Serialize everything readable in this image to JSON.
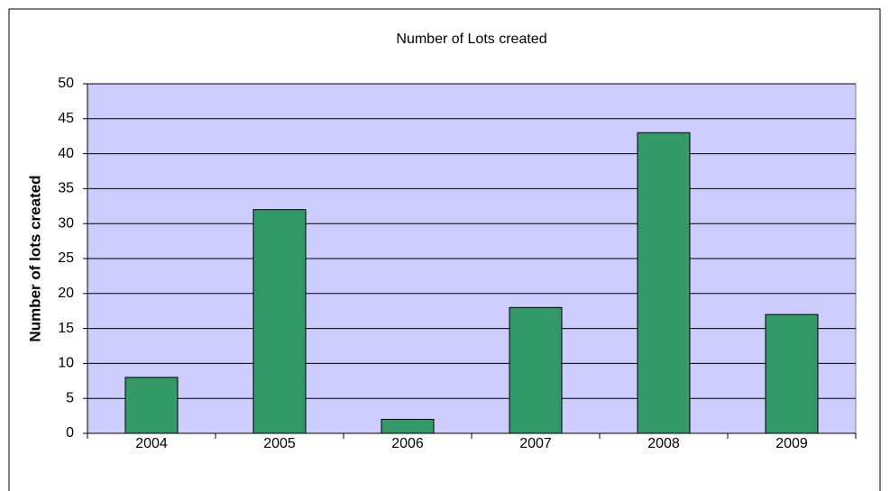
{
  "chart_data": {
    "type": "bar",
    "title": "Number of Lots created",
    "y_label": "Number of lots created",
    "categories": [
      "2004",
      "2005",
      "2006",
      "2007",
      "2008",
      "2009"
    ],
    "values": [
      8,
      32,
      2,
      18,
      43,
      17
    ],
    "color": "#339966",
    "plot_background": "#ccccff",
    "ylim": [
      0,
      50
    ],
    "yticks": [
      0,
      5,
      10,
      15,
      20,
      25,
      30,
      35,
      40,
      45,
      50
    ],
    "grid": true
  }
}
